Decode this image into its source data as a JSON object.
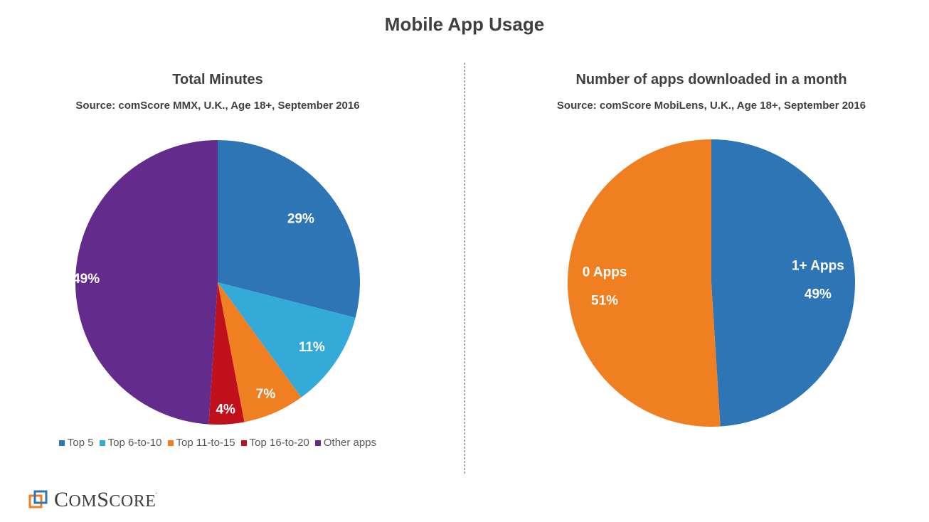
{
  "title": "Mobile App Usage",
  "charts": [
    {
      "title": "Total Minutes",
      "source": "Source: comScore MMX, U.K., Age 18+, September 2016"
    },
    {
      "title": "Number of apps downloaded  in a month",
      "source": "Source: comScore MobiLens, U.K., Age 18+, September 2016"
    }
  ],
  "chart_data": [
    {
      "type": "pie",
      "title": "Total Minutes",
      "subtitle": "Source: comScore MMX, U.K., Age 18+, September 2016",
      "legend": "bottom",
      "slices": [
        {
          "name": "Top 5",
          "value": 29,
          "label": "29%",
          "color": "#2E75B6"
        },
        {
          "name": "Top 6-to-10",
          "value": 11,
          "label": "11%",
          "color": "#33AAD8"
        },
        {
          "name": "Top 11-to-15",
          "value": 7,
          "label": "7%",
          "color": "#F07F22"
        },
        {
          "name": "Top 16-to-20",
          "value": 4,
          "label": "4%",
          "color": "#C0101C"
        },
        {
          "name": "Other apps",
          "value": 49,
          "label": "49%",
          "color": "#622B8C"
        }
      ]
    },
    {
      "type": "pie",
      "title": "Number of apps downloaded  in a month",
      "subtitle": "Source: comScore MobiLens, U.K., Age 18+, September 2016",
      "slices": [
        {
          "name": "1+ Apps",
          "value": 49,
          "label": "49%",
          "color": "#2E75B6"
        },
        {
          "name": "0 Apps",
          "value": 51,
          "label": "51%",
          "color": "#F07F22"
        }
      ]
    }
  ],
  "logo": {
    "text_big_c": "C",
    "text_om": "OM",
    "text_big_s": "S",
    "text_core": "CORE",
    "registered": ".",
    "colors": {
      "square_front": "#2E75B6",
      "square_back": "#F07F22"
    }
  }
}
